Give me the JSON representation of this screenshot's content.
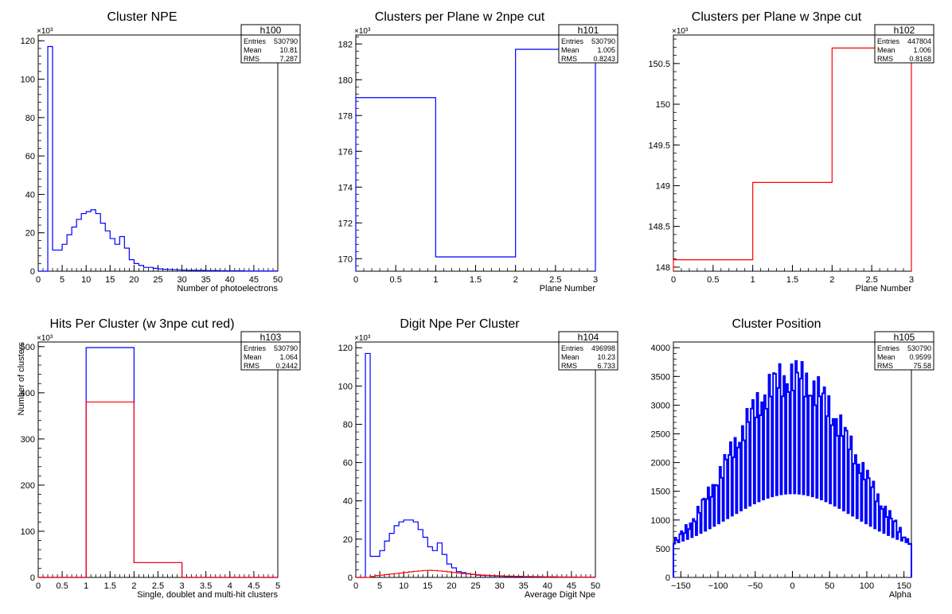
{
  "chart_data": [
    {
      "id": "h100",
      "type": "histogram",
      "title": "Cluster NPE",
      "xlabel": "Number of photoelectrons",
      "ylabel": "",
      "xlim": [
        0,
        50
      ],
      "ylim": [
        0,
        123
      ],
      "xticks": [
        "0",
        "5",
        "10",
        "15",
        "20",
        "25",
        "30",
        "35",
        "40",
        "45",
        "50"
      ],
      "yticks": [
        "0",
        "20",
        "40",
        "60",
        "80",
        "100",
        "120"
      ],
      "yexp": "×10³",
      "stats": {
        "name": "h100",
        "rows": [
          [
            "Entries",
            "530790"
          ],
          [
            "Mean",
            "10.81"
          ],
          [
            "RMS",
            "7.287"
          ]
        ]
      },
      "series": [
        {
          "color": "#0000ff",
          "binwidth": 1,
          "xstart": 0,
          "values": [
            0,
            0,
            117,
            11,
            11,
            14,
            19,
            23,
            27,
            30,
            31,
            32,
            30,
            25,
            21,
            17,
            14,
            18,
            12,
            6,
            4,
            3,
            2,
            2,
            1.5,
            1.2,
            1,
            0.9,
            0.8,
            0.7,
            0.6,
            0.5,
            0.5,
            0.4,
            0.4,
            0.3,
            0.3,
            0.3,
            0.2,
            0.2,
            0.2,
            0.2,
            0.2,
            0.1,
            0.1,
            0.1,
            0.1,
            0.1,
            0.1,
            0.1
          ]
        }
      ]
    },
    {
      "id": "h101",
      "type": "histogram",
      "title": "Clusters per Plane w 2npe cut",
      "xlabel": "Plane Number",
      "ylabel": "",
      "xlim": [
        0,
        3
      ],
      "ylim": [
        169.3,
        182.5
      ],
      "xticks": [
        "0",
        "0.5",
        "1",
        "1.5",
        "2",
        "2.5",
        "3"
      ],
      "yticks": [
        "170",
        "172",
        "174",
        "176",
        "178",
        "180",
        "182"
      ],
      "yexp": "×10³",
      "stats": {
        "name": "h101",
        "rows": [
          [
            "Entries",
            "530790"
          ],
          [
            "Mean",
            "1.005"
          ],
          [
            "RMS",
            "0.8243"
          ]
        ]
      },
      "series": [
        {
          "color": "#0000ff",
          "binwidth": 1,
          "xstart": 0,
          "values": [
            179.0,
            170.1,
            181.7
          ]
        }
      ]
    },
    {
      "id": "h102",
      "type": "histogram",
      "title": "Clusters per Plane w 3npe cut",
      "xlabel": "Plane Number",
      "ylabel": "",
      "xlim": [
        0,
        3
      ],
      "ylim": [
        147.95,
        150.85
      ],
      "xticks": [
        "0",
        "0.5",
        "1",
        "1.5",
        "2",
        "2.5",
        "3"
      ],
      "yticks": [
        "148",
        "148.5",
        "149",
        "149.5",
        "150",
        "150.5"
      ],
      "yexp": "×10³",
      "stats": {
        "name": "h102",
        "rows": [
          [
            "Entries",
            "447804"
          ],
          [
            "Mean",
            "1.006"
          ],
          [
            "RMS",
            "0.8168"
          ]
        ]
      },
      "series": [
        {
          "color": "#ff0000",
          "binwidth": 1,
          "xstart": 0,
          "values": [
            148.09,
            149.04,
            150.69
          ]
        }
      ]
    },
    {
      "id": "h103",
      "type": "histogram",
      "title": "Hits Per Cluster (w 3npe cut red)",
      "xlabel": "Single, doublet and multi-hit clusters",
      "ylabel": "Number of clusters",
      "xlim": [
        0,
        5
      ],
      "ylim": [
        0,
        510
      ],
      "xticks": [
        "0",
        "0.5",
        "1",
        "1.5",
        "2",
        "2.5",
        "3",
        "3.5",
        "4",
        "4.5",
        "5"
      ],
      "yticks": [
        "0",
        "100",
        "200",
        "300",
        "400",
        "500"
      ],
      "yexp": "×10³",
      "stats": {
        "name": "h103",
        "rows": [
          [
            "Entries",
            "530790"
          ],
          [
            "Mean",
            "1.064"
          ],
          [
            "RMS",
            "0.2442"
          ]
        ]
      },
      "series": [
        {
          "color": "#0000ff",
          "binwidth": 1,
          "xstart": 0,
          "values": [
            0,
            498,
            32,
            0,
            0
          ]
        },
        {
          "color": "#ff0000",
          "binwidth": 1,
          "xstart": 0,
          "values": [
            0,
            380,
            32,
            0,
            0
          ]
        }
      ]
    },
    {
      "id": "h104",
      "type": "histogram",
      "title": "Digit Npe Per Cluster",
      "xlabel": "Average Digit Npe",
      "ylabel": "",
      "xlim": [
        0,
        50
      ],
      "ylim": [
        0,
        123
      ],
      "xticks": [
        "0",
        "5",
        "10",
        "15",
        "20",
        "25",
        "30",
        "35",
        "40",
        "45",
        "50"
      ],
      "yticks": [
        "0",
        "20",
        "40",
        "60",
        "80",
        "100",
        "120"
      ],
      "yexp": "×10³",
      "stats": {
        "name": "h104",
        "rows": [
          [
            "Entries",
            "496998"
          ],
          [
            "Mean",
            "10.23"
          ],
          [
            "RMS",
            "6.733"
          ]
        ]
      },
      "series": [
        {
          "color": "#0000ff",
          "binwidth": 1,
          "xstart": 0,
          "values": [
            0,
            0,
            117,
            11,
            11,
            14,
            19,
            23,
            27,
            29,
            30,
            30,
            29,
            25,
            21,
            16,
            14,
            18,
            12,
            7,
            5,
            3,
            2.5,
            2,
            1.5,
            1.2,
            1,
            0.9,
            0.8,
            0.7,
            0.6,
            0.5,
            0.5,
            0.4,
            0.4,
            0.3,
            0.3,
            0.3,
            0.2,
            0.2,
            0.2,
            0.2,
            0.2,
            0.1,
            0.1,
            0.1,
            0.1,
            0.1,
            0.1,
            0.1
          ]
        },
        {
          "color": "#ff0000",
          "binwidth": 1,
          "xstart": 0,
          "values": [
            0,
            0,
            0,
            0.5,
            1,
            1.2,
            1.5,
            1.8,
            2,
            2.3,
            2.6,
            2.9,
            3.2,
            3.4,
            3.6,
            3.7,
            3.6,
            3.4,
            3.2,
            2.9,
            2.6,
            2.3,
            2,
            1.8,
            1.6,
            1.4,
            1.2,
            1.1,
            1,
            0.9,
            0.8,
            0.7,
            0.7,
            0.6,
            0.6,
            0.5,
            0.5,
            0.4,
            0.4,
            0.3,
            0.3,
            0.3,
            0.2,
            0.2,
            0.2,
            0.2,
            0.1,
            0.1,
            0.1,
            0.1
          ]
        }
      ]
    },
    {
      "id": "h105",
      "type": "histogram",
      "title": "Cluster Position",
      "xlabel": "Alpha",
      "ylabel": "",
      "xlim": [
        -160,
        160
      ],
      "ylim": [
        0,
        4100
      ],
      "xticks": [
        "-150",
        "-100",
        "-50",
        "0",
        "50",
        "100",
        "150"
      ],
      "xtickvals": [
        -150,
        -100,
        -50,
        0,
        50,
        100,
        150
      ],
      "yticks": [
        "0",
        "500",
        "1000",
        "1500",
        "2000",
        "2500",
        "3000",
        "3500",
        "4000"
      ],
      "yexp": "",
      "stats": {
        "name": "h105",
        "rows": [
          [
            "Entries",
            "530790"
          ],
          [
            "Mean",
            "0.9599"
          ],
          [
            "RMS",
            "75.58"
          ]
        ]
      },
      "series": [
        {
          "color": "#0000ff",
          "binwidth": 2,
          "xstart": -160,
          "style": "spiky",
          "envelope_peak": 3800,
          "envelope_sigma": 85,
          "envelope_center": 0
        }
      ]
    }
  ]
}
